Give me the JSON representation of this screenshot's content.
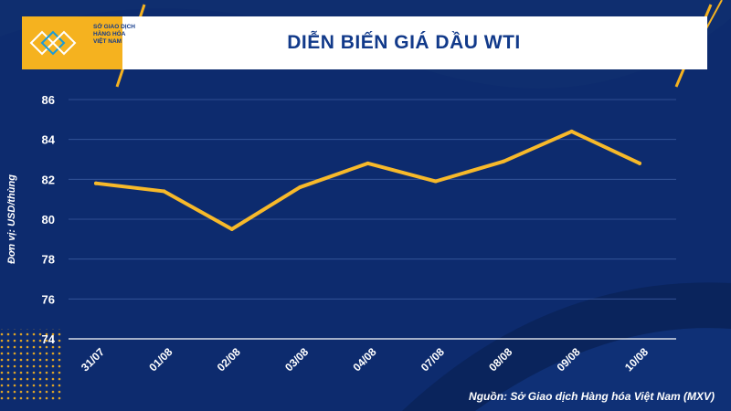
{
  "header": {
    "logo_lines": [
      "SỞ GIAO DỊCH",
      "HÀNG HÓA",
      "VIỆT NAM"
    ],
    "title": "DIỄN BIẾN GIÁ DẦU WTI"
  },
  "footer": {
    "source": "Nguồn: Sở Giao dịch Hàng hóa Việt Nam (MXV)"
  },
  "colors": {
    "background": "#0d2b6e",
    "accent": "#f5b21f",
    "line": "#f7b92a",
    "text": "#ffffff",
    "title": "#123a8a"
  },
  "icons": [
    "mxv-logo-icon"
  ],
  "chart_data": {
    "type": "line",
    "title": "DIỄN BIẾN GIÁ DẦU WTI",
    "ylabel": "Đơn vị: USD/thùng",
    "xlabel": "",
    "categories": [
      "31/07",
      "01/08",
      "02/08",
      "03/08",
      "04/08",
      "07/08",
      "08/08",
      "09/08",
      "10/08"
    ],
    "series": [
      {
        "values": [
          81.8,
          81.4,
          79.5,
          81.6,
          82.8,
          81.9,
          82.9,
          84.4,
          82.8
        ]
      }
    ],
    "ylim": [
      74,
      86
    ],
    "yticks": [
      74,
      76,
      78,
      80,
      82,
      84,
      86
    ],
    "grid": true,
    "legend": "none"
  }
}
